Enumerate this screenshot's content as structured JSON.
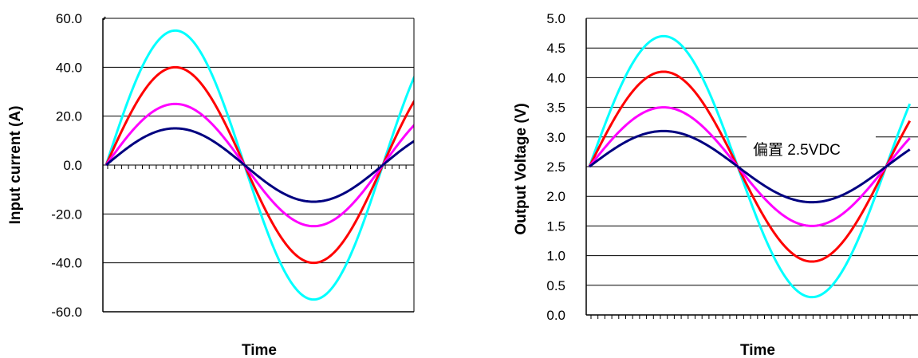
{
  "chart_data": [
    {
      "type": "line",
      "title": "",
      "xlabel": "Time",
      "ylabel": "Input current  (A)",
      "ylim": [
        -60,
        60
      ],
      "y_ticks": [
        "60.0",
        "40.0",
        "20.0",
        "0.0",
        "-20.0",
        "-40.0",
        "-60.0"
      ],
      "x_range_cycles": [
        0,
        1.125
      ],
      "grid": "horizontal",
      "series": [
        {
          "color": "#00ffff",
          "amplitude": 55,
          "offset": 0
        },
        {
          "color": "#ff0000",
          "amplitude": 40,
          "offset": 0
        },
        {
          "color": "#ff00ff",
          "amplitude": 25,
          "offset": 0
        },
        {
          "color": "#000080",
          "amplitude": 15,
          "offset": 0
        }
      ]
    },
    {
      "type": "line",
      "title": "",
      "xlabel": "Time",
      "ylabel": "Output Voltage (V)",
      "ylim": [
        0,
        5
      ],
      "y_ticks": [
        "5.0",
        "4.5",
        "4.0",
        "3.5",
        "3.0",
        "2.5",
        "2.0",
        "1.5",
        "1.0",
        "0.5",
        "0.0"
      ],
      "x_range_cycles": [
        0,
        1.08
      ],
      "grid": "horizontal",
      "annotation": "偏置 2.5VDC",
      "series": [
        {
          "color": "#00ffff",
          "amplitude": 2.2,
          "offset": 2.5
        },
        {
          "color": "#ff0000",
          "amplitude": 1.6,
          "offset": 2.5
        },
        {
          "color": "#ff00ff",
          "amplitude": 1.0,
          "offset": 2.5
        },
        {
          "color": "#000080",
          "amplitude": 0.6,
          "offset": 2.5
        }
      ]
    }
  ]
}
